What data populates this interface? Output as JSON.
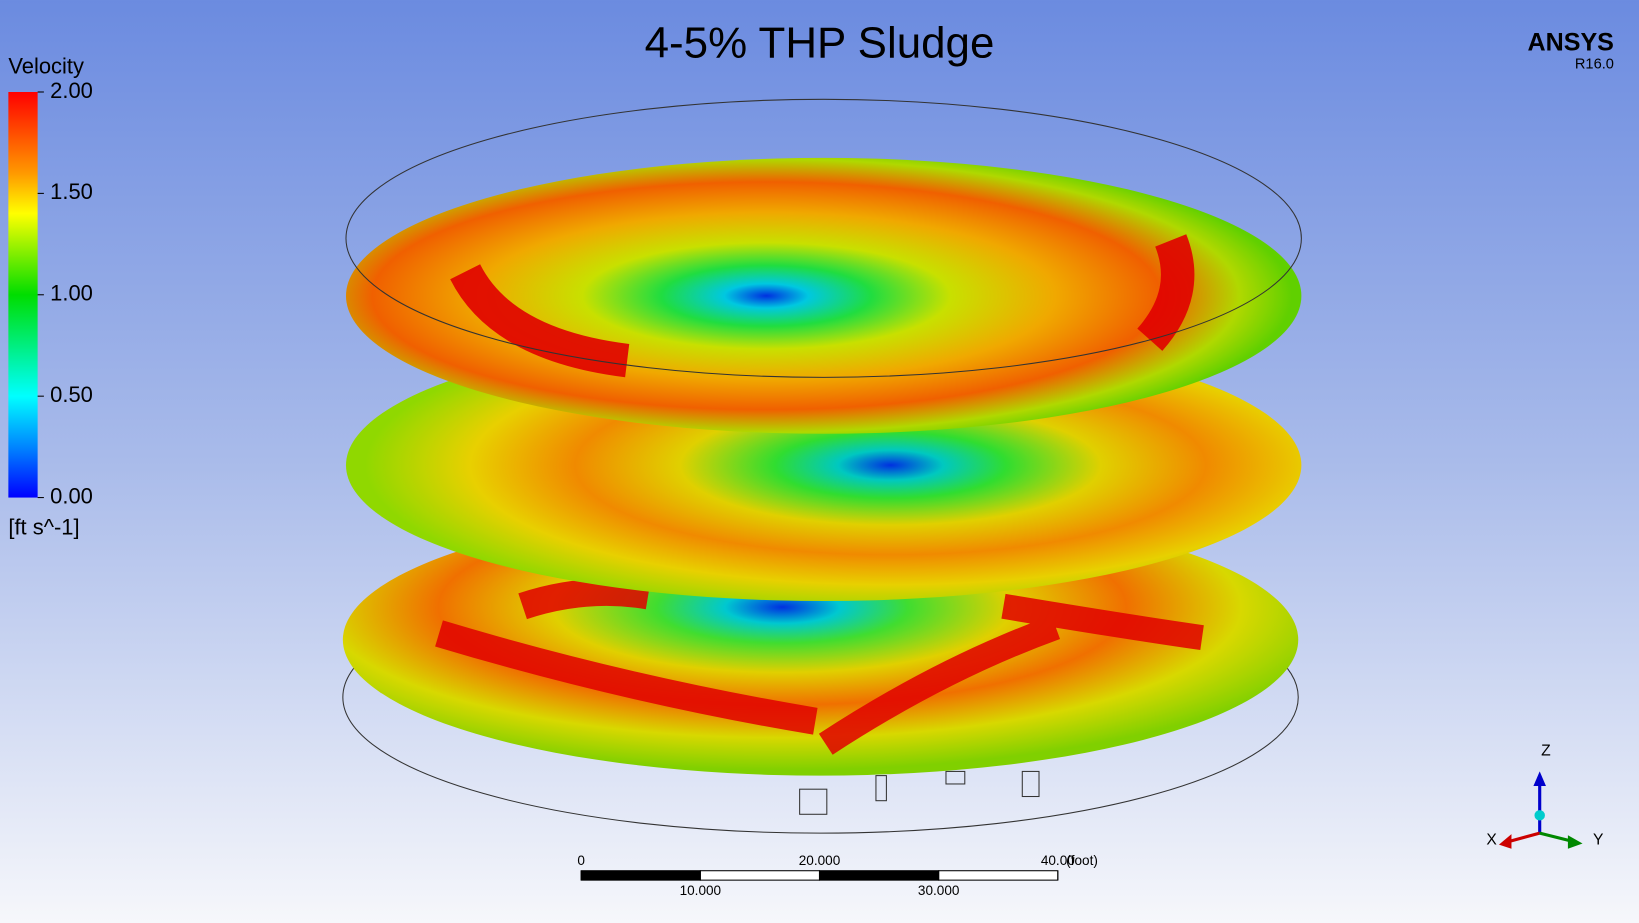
{
  "header": {
    "title": "4-5% THP Sludge",
    "brand": "ANSYS",
    "version": "R16.0"
  },
  "legend": {
    "title": "Velocity",
    "unit": "[ft s^-1]",
    "range": [
      0,
      2
    ],
    "ticks": [
      {
        "value": 2,
        "label": "2.00"
      },
      {
        "value": 1.5,
        "label": "1.50"
      },
      {
        "value": 1,
        "label": "1.00"
      },
      {
        "value": 0.5,
        "label": "0.50"
      },
      {
        "value": 0,
        "label": "0.00"
      }
    ]
  },
  "scale_bar": {
    "unit": "(foot)",
    "range": [
      0,
      40
    ],
    "ticks": [
      0,
      {
        "value": 10,
        "label": "10.000"
      },
      {
        "value": 20,
        "label": "20.000"
      },
      {
        "value": 30,
        "label": "30.000"
      },
      {
        "value": 40,
        "label": "40.00"
      }
    ]
  },
  "axes_triad": {
    "z": "Z",
    "x": "X",
    "y": "Y"
  }
}
